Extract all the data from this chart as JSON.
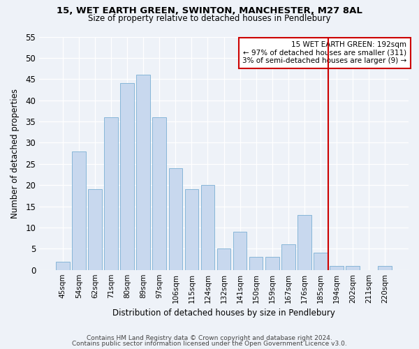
{
  "title1": "15, WET EARTH GREEN, SWINTON, MANCHESTER, M27 8AL",
  "title2": "Size of property relative to detached houses in Pendlebury",
  "xlabel": "Distribution of detached houses by size in Pendlebury",
  "ylabel": "Number of detached properties",
  "categories": [
    "45sqm",
    "54sqm",
    "62sqm",
    "71sqm",
    "80sqm",
    "89sqm",
    "97sqm",
    "106sqm",
    "115sqm",
    "124sqm",
    "132sqm",
    "141sqm",
    "150sqm",
    "159sqm",
    "167sqm",
    "176sqm",
    "185sqm",
    "194sqm",
    "202sqm",
    "211sqm",
    "220sqm"
  ],
  "values": [
    2,
    28,
    19,
    36,
    44,
    46,
    36,
    24,
    19,
    20,
    5,
    9,
    3,
    3,
    6,
    13,
    4,
    1,
    1,
    0,
    1
  ],
  "bar_color": "#c8d8ee",
  "bar_edge_color": "#7aafd4",
  "marker_line_color": "#cc0000",
  "annotation_line1": "15 WET EARTH GREEN: 192sqm",
  "annotation_line2": "← 97% of detached houses are smaller (311)",
  "annotation_line3": "3% of semi-detached houses are larger (9) →",
  "annotation_box_color": "#cc0000",
  "ylim": [
    0,
    55
  ],
  "yticks": [
    0,
    5,
    10,
    15,
    20,
    25,
    30,
    35,
    40,
    45,
    50,
    55
  ],
  "footer1": "Contains HM Land Registry data © Crown copyright and database right 2024.",
  "footer2": "Contains public sector information licensed under the Open Government Licence v3.0.",
  "bg_color": "#eef2f8"
}
